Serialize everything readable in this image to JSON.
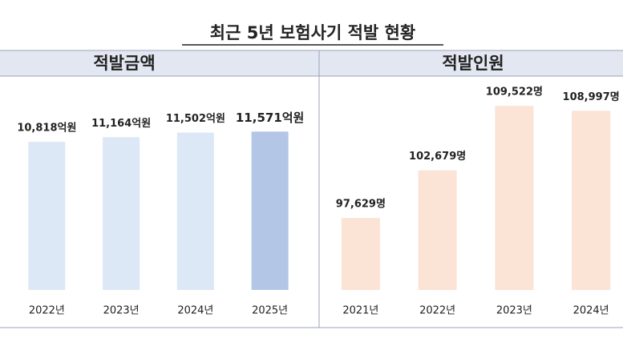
{
  "title": "최근 5년 보험사기 적발 현황",
  "chart_data": [
    {
      "type": "bar",
      "title": "적발금액",
      "categories": [
        "2022년",
        "2023년",
        "2024년",
        "2025년"
      ],
      "values": [
        10818,
        11164,
        11502,
        11571
      ],
      "value_labels": [
        "10,818억원",
        "11,164억원",
        "11,502억원",
        "11,571억원"
      ],
      "colors": [
        "#dce8f5",
        "#dce8f5",
        "#dce8f5",
        "#b4c6e6"
      ],
      "value_label_colors": [
        "#333333",
        "#333333",
        "#333333",
        "#e0191e"
      ],
      "ylim": [
        0,
        12000
      ]
    },
    {
      "type": "bar",
      "title": "적발인원",
      "categories": [
        "2021년",
        "2022년",
        "2023년",
        "2024년"
      ],
      "values": [
        97629,
        102679,
        109522,
        108997
      ],
      "value_labels": [
        "97,629명",
        "102,679명",
        "109,522명",
        "108,997명"
      ],
      "colors": [
        "#fbe3d5",
        "#fbe3d5",
        "#fbe3d5",
        "#fbe3d5"
      ],
      "value_label_colors": [
        "#333333",
        "#333333",
        "#333333",
        "#333333"
      ],
      "ylim": [
        90000,
        112000
      ]
    }
  ]
}
